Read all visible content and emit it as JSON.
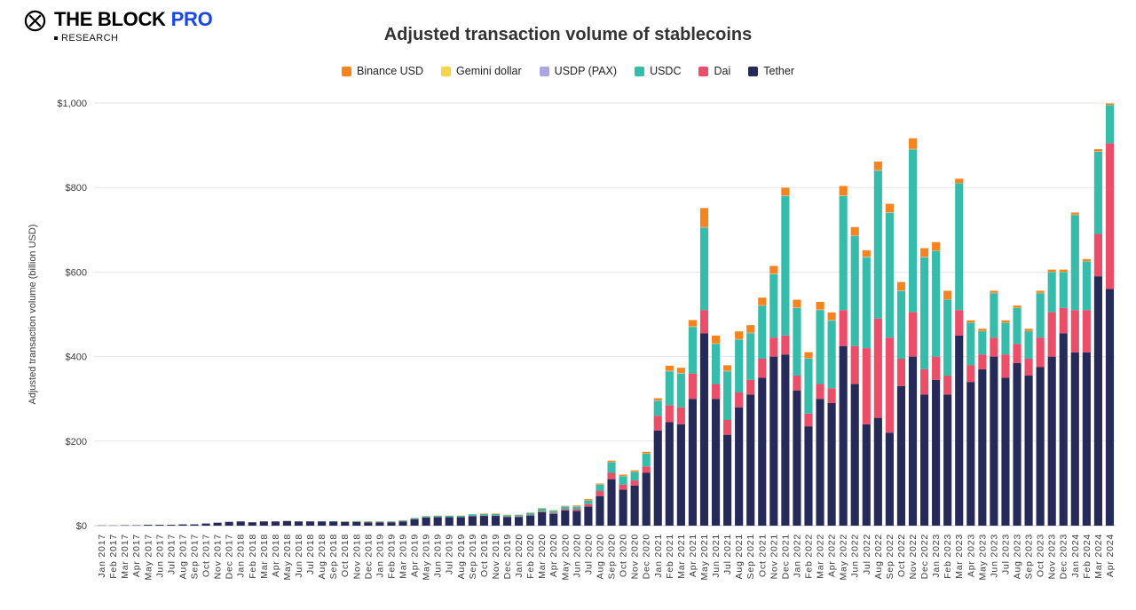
{
  "header": {
    "brand_main": "THE BLOCK",
    "brand_pro": "PRO",
    "brand_sub": "RESEARCH",
    "title": "Adjusted transaction volume of stablecoins"
  },
  "legend": {
    "items": [
      {
        "label": "Binance USD",
        "color": "#f5841f"
      },
      {
        "label": "Gemini dollar",
        "color": "#f6d44a"
      },
      {
        "label": "USDP (PAX)",
        "color": "#aaa6df"
      },
      {
        "label": "USDC",
        "color": "#35bcab"
      },
      {
        "label": "Dai",
        "color": "#ea4e68"
      },
      {
        "label": "Tether",
        "color": "#262a59"
      }
    ]
  },
  "chart_data": {
    "type": "bar",
    "stacked": true,
    "title": "Adjusted transaction volume of stablecoins",
    "xlabel": "",
    "ylabel": "Adjusted transaction volume (billion USD)",
    "ylim": [
      0,
      1000
    ],
    "ytick_values": [
      0,
      200,
      400,
      600,
      800,
      1000
    ],
    "ytick_labels": [
      "$0",
      "$200",
      "$400",
      "$600",
      "$800",
      "$1,000"
    ],
    "grid": true,
    "legend_position": "top",
    "categories": [
      "Jan 2017",
      "Feb 2017",
      "Mar 2017",
      "Apr 2017",
      "May 2017",
      "Jun 2017",
      "Jul 2017",
      "Aug 2017",
      "Sep 2017",
      "Oct 2017",
      "Nov 2017",
      "Dec 2017",
      "Jan 2018",
      "Feb 2018",
      "Mar 2018",
      "Apr 2018",
      "May 2018",
      "Jun 2018",
      "Jul 2018",
      "Aug 2018",
      "Sep 2018",
      "Oct 2018",
      "Nov 2018",
      "Dec 2018",
      "Jan 2019",
      "Feb 2019",
      "Mar 2019",
      "Apr 2019",
      "May 2019",
      "Jun 2019",
      "Jul 2019",
      "Aug 2019",
      "Sep 2019",
      "Oct 2019",
      "Nov 2019",
      "Dec 2019",
      "Jan 2020",
      "Feb 2020",
      "Mar 2020",
      "Apr 2020",
      "May 2020",
      "Jun 2020",
      "Jul 2020",
      "Aug 2020",
      "Sep 2020",
      "Oct 2020",
      "Nov 2020",
      "Dec 2020",
      "Jan 2021",
      "Feb 2021",
      "Mar 2021",
      "Apr 2021",
      "May 2021",
      "Jun 2021",
      "Jul 2021",
      "Aug 2021",
      "Sep 2021",
      "Oct 2021",
      "Nov 2021",
      "Dec 2021",
      "Jan 2022",
      "Feb 2022",
      "Mar 2022",
      "Apr 2022",
      "May 2022",
      "Jun 2022",
      "Jul 2022",
      "Aug 2022",
      "Sep 2022",
      "Oct 2022",
      "Nov 2022",
      "Dec 2022",
      "Jan 2023",
      "Feb 2023",
      "Mar 2023",
      "Apr 2023",
      "May 2023",
      "Jun 2023",
      "Jul 2023",
      "Aug 2023",
      "Sep 2023",
      "Oct 2023",
      "Nov 2023",
      "Dec 2023",
      "Jan 2024",
      "Feb 2024",
      "Mar 2024",
      "Apr 2024"
    ],
    "series": [
      {
        "name": "Tether",
        "color": "#262a59",
        "values": [
          0.5,
          0.5,
          1,
          1,
          2,
          2,
          2,
          3,
          3,
          5,
          7,
          9,
          10,
          8,
          10,
          10,
          11,
          10,
          10,
          10,
          10,
          9,
          9,
          8,
          8,
          8,
          10,
          15,
          19,
          20,
          20,
          20,
          22,
          23,
          23,
          20,
          20,
          24,
          32,
          28,
          36,
          35,
          45,
          70,
          110,
          85,
          95,
          125,
          225,
          245,
          240,
          300,
          455,
          300,
          215,
          280,
          310,
          350,
          400,
          405,
          320,
          235,
          300,
          290,
          425,
          335,
          240,
          255,
          220,
          330,
          400,
          310,
          345,
          310,
          450,
          340,
          370,
          400,
          350,
          385,
          355,
          375,
          400,
          455,
          410,
          410,
          590,
          560
        ]
      },
      {
        "name": "Dai",
        "color": "#ea4e68",
        "values": [
          0,
          0,
          0,
          0,
          0,
          0,
          0,
          0,
          0,
          0,
          0,
          0,
          0,
          0,
          0,
          0,
          0,
          0,
          0,
          0,
          0,
          0,
          0,
          0.3,
          0.3,
          0.3,
          0.5,
          0.5,
          0.5,
          0.5,
          0.5,
          0.5,
          1,
          1,
          1,
          1,
          1,
          1,
          2,
          2,
          3,
          4,
          6,
          12,
          15,
          12,
          12,
          15,
          35,
          40,
          40,
          60,
          55,
          35,
          35,
          35,
          35,
          45,
          45,
          45,
          35,
          30,
          35,
          35,
          85,
          90,
          180,
          235,
          225,
          65,
          105,
          60,
          55,
          45,
          60,
          40,
          35,
          45,
          55,
          45,
          40,
          70,
          105,
          60,
          100,
          100,
          100,
          345
        ]
      },
      {
        "name": "USDC",
        "color": "#35bcab",
        "values": [
          0,
          0,
          0,
          0,
          0,
          0,
          0,
          0,
          0,
          0,
          0,
          0,
          0,
          0,
          0,
          0,
          0,
          0,
          0,
          0,
          0.5,
          1,
          1.5,
          1.5,
          1.5,
          1.5,
          2,
          2.5,
          3,
          3,
          3,
          3,
          4,
          4,
          4,
          4,
          4,
          5,
          6,
          5,
          6,
          6,
          8,
          15,
          25,
          20,
          20,
          30,
          35,
          80,
          80,
          110,
          195,
          95,
          115,
          125,
          110,
          125,
          150,
          330,
          160,
          130,
          175,
          160,
          270,
          260,
          215,
          350,
          295,
          160,
          385,
          265,
          250,
          180,
          300,
          100,
          55,
          105,
          75,
          85,
          65,
          105,
          95,
          85,
          225,
          115,
          195,
          90
        ]
      },
      {
        "name": "USDP (PAX)",
        "color": "#aaa6df",
        "values": [
          0,
          0,
          0,
          0,
          0,
          0,
          0,
          0,
          0,
          0,
          0,
          0,
          0,
          0,
          0,
          0,
          0,
          0,
          0,
          0,
          0,
          0.3,
          0.3,
          0.3,
          0.3,
          0.3,
          0.3,
          0.3,
          0.3,
          0.3,
          0.3,
          0.3,
          0.3,
          0.3,
          0.3,
          0.3,
          0.5,
          0.5,
          0.5,
          0.5,
          0.5,
          0.5,
          0.5,
          0.5,
          0.5,
          0.5,
          0.5,
          0.5,
          1,
          1,
          1,
          1,
          1,
          1,
          1,
          1,
          1,
          1,
          1,
          1,
          1,
          1,
          1,
          1,
          1,
          1,
          1,
          1,
          1,
          1,
          1,
          1,
          0.5,
          0.5,
          0.5,
          0.5,
          0.5,
          0.5,
          0.5,
          0.5,
          0.5,
          0.5,
          0.5,
          0.5,
          0.5,
          0.5,
          0.5,
          0.5
        ]
      },
      {
        "name": "Gemini dollar",
        "color": "#f6d44a",
        "values": [
          0,
          0,
          0,
          0,
          0,
          0,
          0,
          0,
          0,
          0,
          0,
          0,
          0,
          0,
          0,
          0,
          0,
          0,
          0,
          0,
          0,
          0.2,
          0.2,
          0.2,
          0.2,
          0.2,
          0.2,
          0.2,
          0.2,
          0.2,
          0.2,
          0.2,
          0.2,
          0.2,
          0.2,
          0.2,
          0.3,
          0.3,
          0.3,
          0.3,
          0.3,
          0.3,
          0.3,
          0.3,
          0.3,
          0.3,
          0.3,
          0.3,
          0.5,
          0.5,
          0.5,
          0.5,
          0.5,
          0.5,
          0.5,
          0.5,
          0.5,
          0.5,
          0.5,
          0.5,
          0.5,
          0.5,
          0.5,
          0.5,
          0.5,
          0.5,
          0.5,
          0.5,
          0.5,
          0.5,
          0.5,
          0.5,
          0.3,
          0.3,
          0.3,
          0.3,
          0.3,
          0.3,
          0.3,
          0.3,
          0.3,
          0.3,
          0.3,
          0.3,
          0.3,
          0.3,
          0.3,
          0.3
        ]
      },
      {
        "name": "Binance USD",
        "color": "#f5841f",
        "values": [
          0,
          0,
          0,
          0,
          0,
          0,
          0,
          0,
          0,
          0,
          0,
          0,
          0,
          0,
          0,
          0,
          0,
          0,
          0,
          0,
          0,
          0,
          0,
          0,
          0,
          0,
          0,
          0,
          0,
          0,
          0,
          0,
          0,
          0.2,
          0.2,
          0.2,
          0.5,
          0.5,
          1,
          1,
          1,
          2,
          3,
          2,
          3,
          3,
          3,
          4,
          5,
          12,
          12,
          15,
          45,
          18,
          13,
          18,
          18,
          18,
          18,
          18,
          18,
          14,
          18,
          18,
          22,
          20,
          15,
          20,
          20,
          20,
          25,
          20,
          20,
          20,
          10,
          5,
          5,
          5,
          5,
          5,
          5,
          5,
          5,
          5,
          5,
          5,
          5,
          3
        ]
      }
    ]
  }
}
